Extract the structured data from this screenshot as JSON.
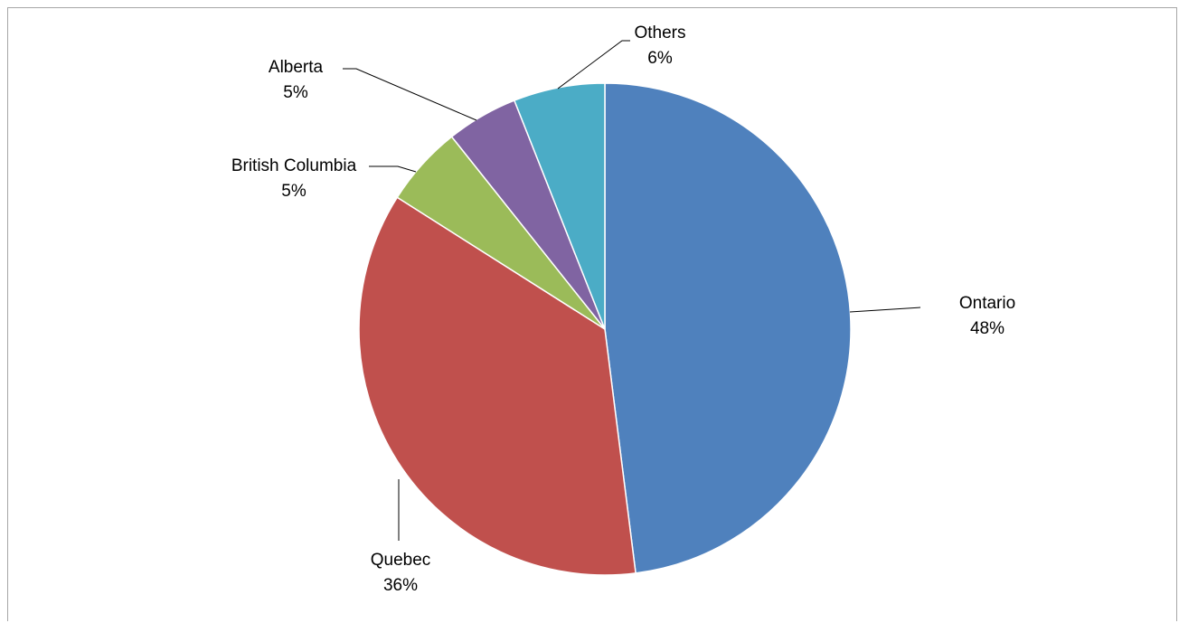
{
  "chart_data": {
    "type": "pie",
    "title": "",
    "slices": [
      {
        "name": "Ontario",
        "label": "48%",
        "value": 48,
        "color": "#4f81bd"
      },
      {
        "name": "Quebec",
        "label": "36%",
        "value": 36,
        "color": "#c0504d"
      },
      {
        "name": "British Columbia",
        "label": "5%",
        "value": 5.3,
        "color": "#9bbb59"
      },
      {
        "name": "Alberta",
        "label": "5%",
        "value": 4.7,
        "color": "#8064a2"
      },
      {
        "name": "Others",
        "label": "6%",
        "value": 6,
        "color": "#4bacc6"
      }
    ],
    "legend": "none",
    "data_labels": "outside-with-leader-lines"
  }
}
